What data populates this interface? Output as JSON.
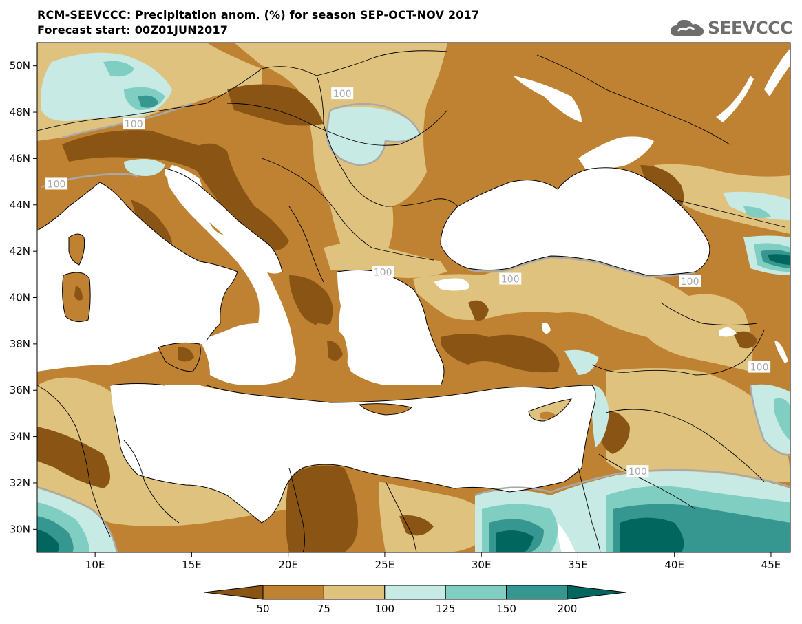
{
  "header": {
    "title_line1": "RCM-SEEVCCC: Precipitation anom. (%) for season SEP-OCT-NOV 2017",
    "title_line2": "Forecast start: 00Z01JUN2017"
  },
  "logo": {
    "text": "SEEVCCC",
    "icon": "cloud-icon"
  },
  "map": {
    "projection": "lat-lon",
    "lon_range": [
      7,
      46
    ],
    "lat_range": [
      29,
      51
    ],
    "lat_ticks": [
      {
        "value": 50,
        "label": "50N"
      },
      {
        "value": 48,
        "label": "48N"
      },
      {
        "value": 46,
        "label": "46N"
      },
      {
        "value": 44,
        "label": "44N"
      },
      {
        "value": 42,
        "label": "42N"
      },
      {
        "value": 40,
        "label": "40N"
      },
      {
        "value": 38,
        "label": "38N"
      },
      {
        "value": 36,
        "label": "36N"
      },
      {
        "value": 34,
        "label": "34N"
      },
      {
        "value": 32,
        "label": "32N"
      },
      {
        "value": 30,
        "label": "30N"
      }
    ],
    "lon_ticks": [
      {
        "value": 10,
        "label": "10E"
      },
      {
        "value": 15,
        "label": "15E"
      },
      {
        "value": 20,
        "label": "20E"
      },
      {
        "value": 25,
        "label": "25E"
      },
      {
        "value": 30,
        "label": "30E"
      },
      {
        "value": 35,
        "label": "35E"
      },
      {
        "value": 40,
        "label": "40E"
      },
      {
        "value": 45,
        "label": "45E"
      }
    ],
    "contour_labels": [
      {
        "text": "100",
        "lon": 22.8,
        "lat": 48.8
      },
      {
        "text": "100",
        "lon": 12.0,
        "lat": 47.5
      },
      {
        "text": "100",
        "lon": 8.0,
        "lat": 44.9
      },
      {
        "text": "100",
        "lon": 24.9,
        "lat": 41.1
      },
      {
        "text": "100",
        "lon": 31.5,
        "lat": 40.8
      },
      {
        "text": "100",
        "lon": 40.8,
        "lat": 40.7
      },
      {
        "text": "100",
        "lon": 44.4,
        "lat": 37.0
      },
      {
        "text": "100",
        "lon": 38.1,
        "lat": 32.5
      }
    ]
  },
  "legend": {
    "levels": [
      "50",
      "75",
      "100",
      "125",
      "150",
      "200"
    ],
    "colors": [
      "#8a5514",
      "#bf8232",
      "#dfc27d",
      "#c7eae5",
      "#80cdc1",
      "#35978f",
      "#01665e"
    ]
  },
  "colors": {
    "very_dry": "#8a5514",
    "dry": "#bf8232",
    "slightly_dry": "#dfc27d",
    "slightly_wet": "#c7eae5",
    "wet": "#80cdc1",
    "very_wet": "#35978f",
    "extreme_wet": "#01665e",
    "sea": "#ffffff",
    "contour_100": "#a9a9a9"
  }
}
